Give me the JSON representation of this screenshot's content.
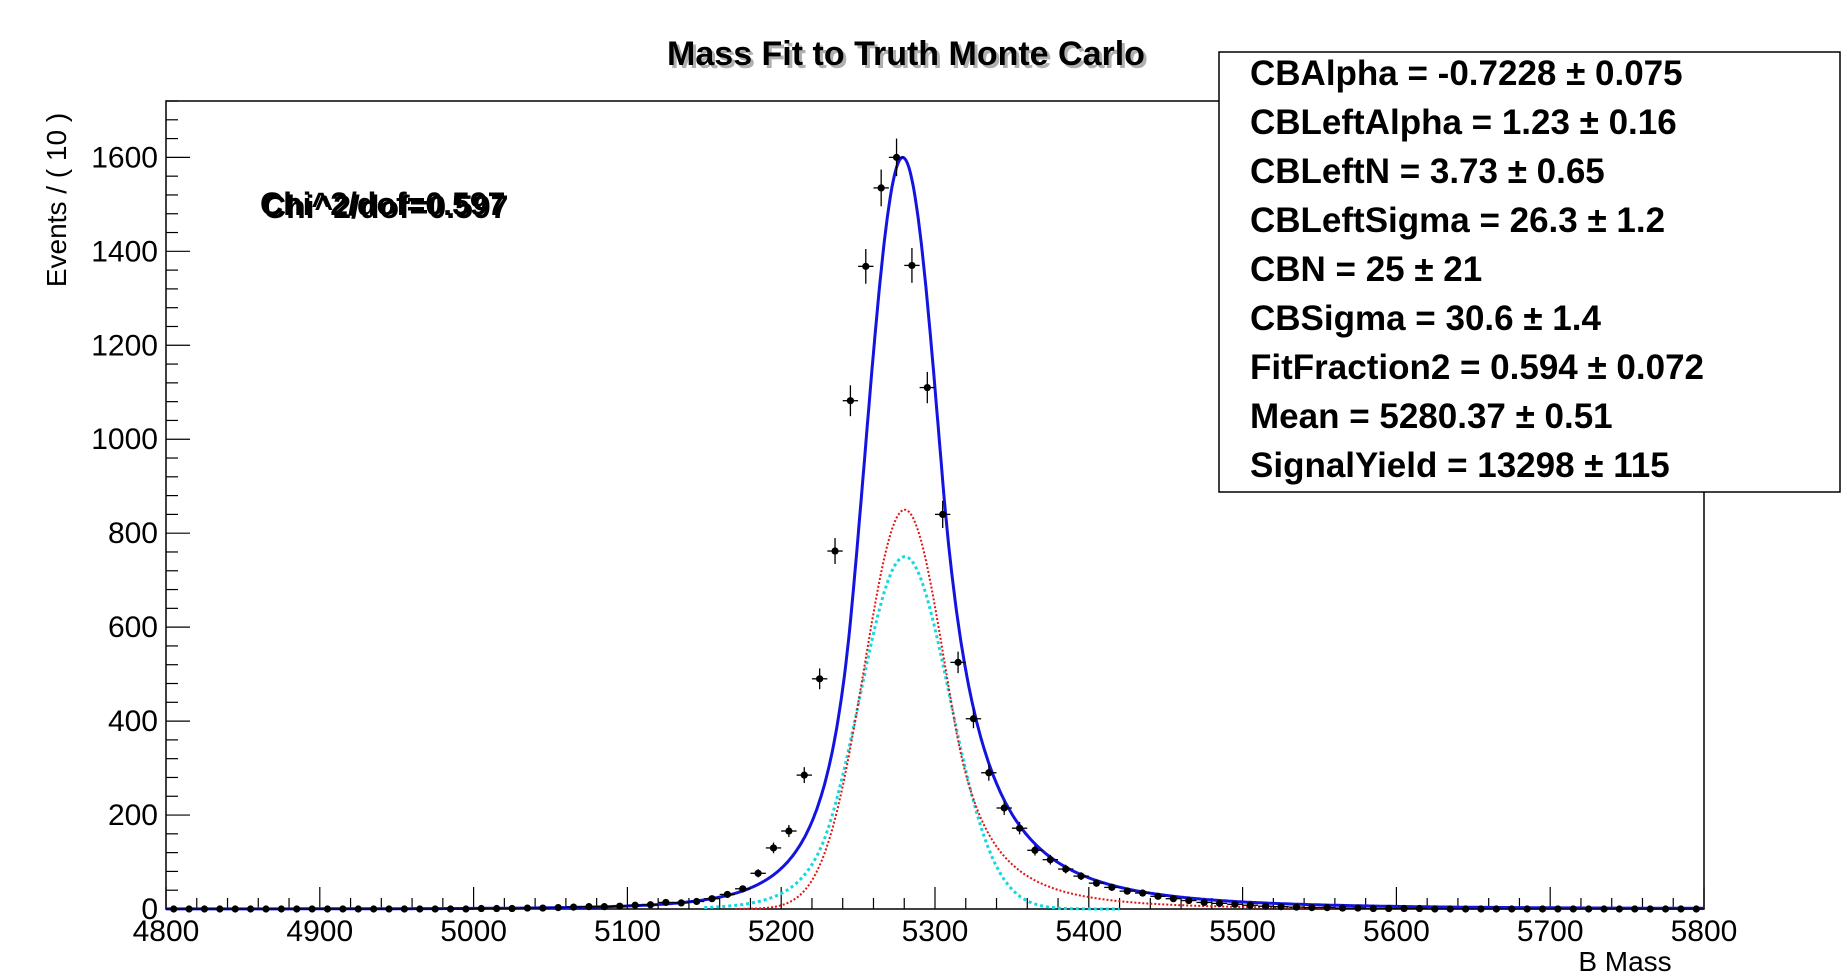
{
  "chart_data": {
    "type": "scatter",
    "title": "Mass Fit to Truth Monte Carlo",
    "xlabel": "B  Mass",
    "ylabel": "Events / ( 10 )",
    "xlim": [
      4800,
      5800
    ],
    "ylim": [
      0,
      1720
    ],
    "xticks": [
      4800,
      4900,
      5000,
      5100,
      5200,
      5300,
      5400,
      5500,
      5600,
      5700,
      5800
    ],
    "yticks": [
      0,
      200,
      400,
      600,
      800,
      1000,
      1200,
      1400,
      1600
    ],
    "grid": false,
    "chi2_label": "Chi^2/dof=0.597",
    "data_points": {
      "x": [
        4805,
        4815,
        4825,
        4835,
        4845,
        4855,
        4865,
        4875,
        4885,
        4895,
        4905,
        4915,
        4925,
        4935,
        4945,
        4955,
        4965,
        4975,
        4985,
        4995,
        5005,
        5015,
        5025,
        5035,
        5045,
        5055,
        5065,
        5075,
        5085,
        5095,
        5105,
        5115,
        5125,
        5135,
        5145,
        5155,
        5165,
        5175,
        5185,
        5195,
        5205,
        5215,
        5225,
        5235,
        5245,
        5255,
        5265,
        5275,
        5285,
        5295,
        5305,
        5315,
        5325,
        5335,
        5345,
        5355,
        5365,
        5375,
        5385,
        5395,
        5405,
        5415,
        5425,
        5435,
        5445,
        5455,
        5465,
        5475,
        5485,
        5495,
        5505,
        5515,
        5525,
        5535,
        5545,
        5555,
        5565,
        5575,
        5585,
        5595,
        5605,
        5615,
        5625,
        5635,
        5645,
        5655,
        5665,
        5675,
        5685,
        5695,
        5705,
        5715,
        5725,
        5735,
        5745,
        5755,
        5765,
        5775,
        5785,
        5795
      ],
      "y": [
        0,
        0,
        0,
        0,
        0,
        0,
        0,
        0,
        0,
        0,
        0,
        0,
        0,
        0,
        0,
        0,
        0,
        0,
        0,
        0,
        1,
        1,
        1,
        2,
        2,
        3,
        4,
        5,
        5,
        6,
        8,
        9,
        14,
        13,
        16,
        22,
        31,
        43,
        76,
        130,
        166,
        285,
        490,
        762,
        1082,
        1368,
        1535,
        1600,
        1370,
        1110,
        840,
        525,
        405,
        290,
        215,
        172,
        125,
        105,
        85,
        70,
        55,
        46,
        38,
        34,
        27,
        22,
        18,
        14,
        12,
        10,
        8,
        6,
        5,
        4,
        3,
        3,
        2,
        2,
        1,
        1,
        1,
        1,
        0,
        0,
        0,
        0,
        0,
        0,
        0,
        0,
        0,
        0,
        0,
        0,
        0,
        0,
        0,
        0,
        0,
        0
      ]
    },
    "series": [
      {
        "color": "#1414e0",
        "style": "solid"
      },
      {
        "color": "#e01414",
        "style": "dotted"
      },
      {
        "color": "#14d8e0",
        "style": "dotted"
      }
    ],
    "fit_params": [
      {
        "name": "CBAlpha",
        "text": "CBAlpha = -0.7228  ± 0.075"
      },
      {
        "name": "CBLeftAlpha",
        "text": "CBLeftAlpha =  1.23  ± 0.16"
      },
      {
        "name": "CBLeftN",
        "text": "CBLeftN =  3.73  ± 0.65"
      },
      {
        "name": "CBLeftSigma",
        "text": "CBLeftSigma =  26.3  ± 1.2"
      },
      {
        "name": "CBN",
        "text": "CBN =  25  ± 21"
      },
      {
        "name": "CBSigma",
        "text": "CBSigma =  30.6  ± 1.4"
      },
      {
        "name": "FitFraction2",
        "text": "FitFraction2 =  0.594  ± 0.072"
      },
      {
        "name": "Mean",
        "text": "Mean =  5280.37  ± 0.51"
      },
      {
        "name": "SignalYield",
        "text": "SignalYield =  13298  ± 115"
      }
    ]
  }
}
